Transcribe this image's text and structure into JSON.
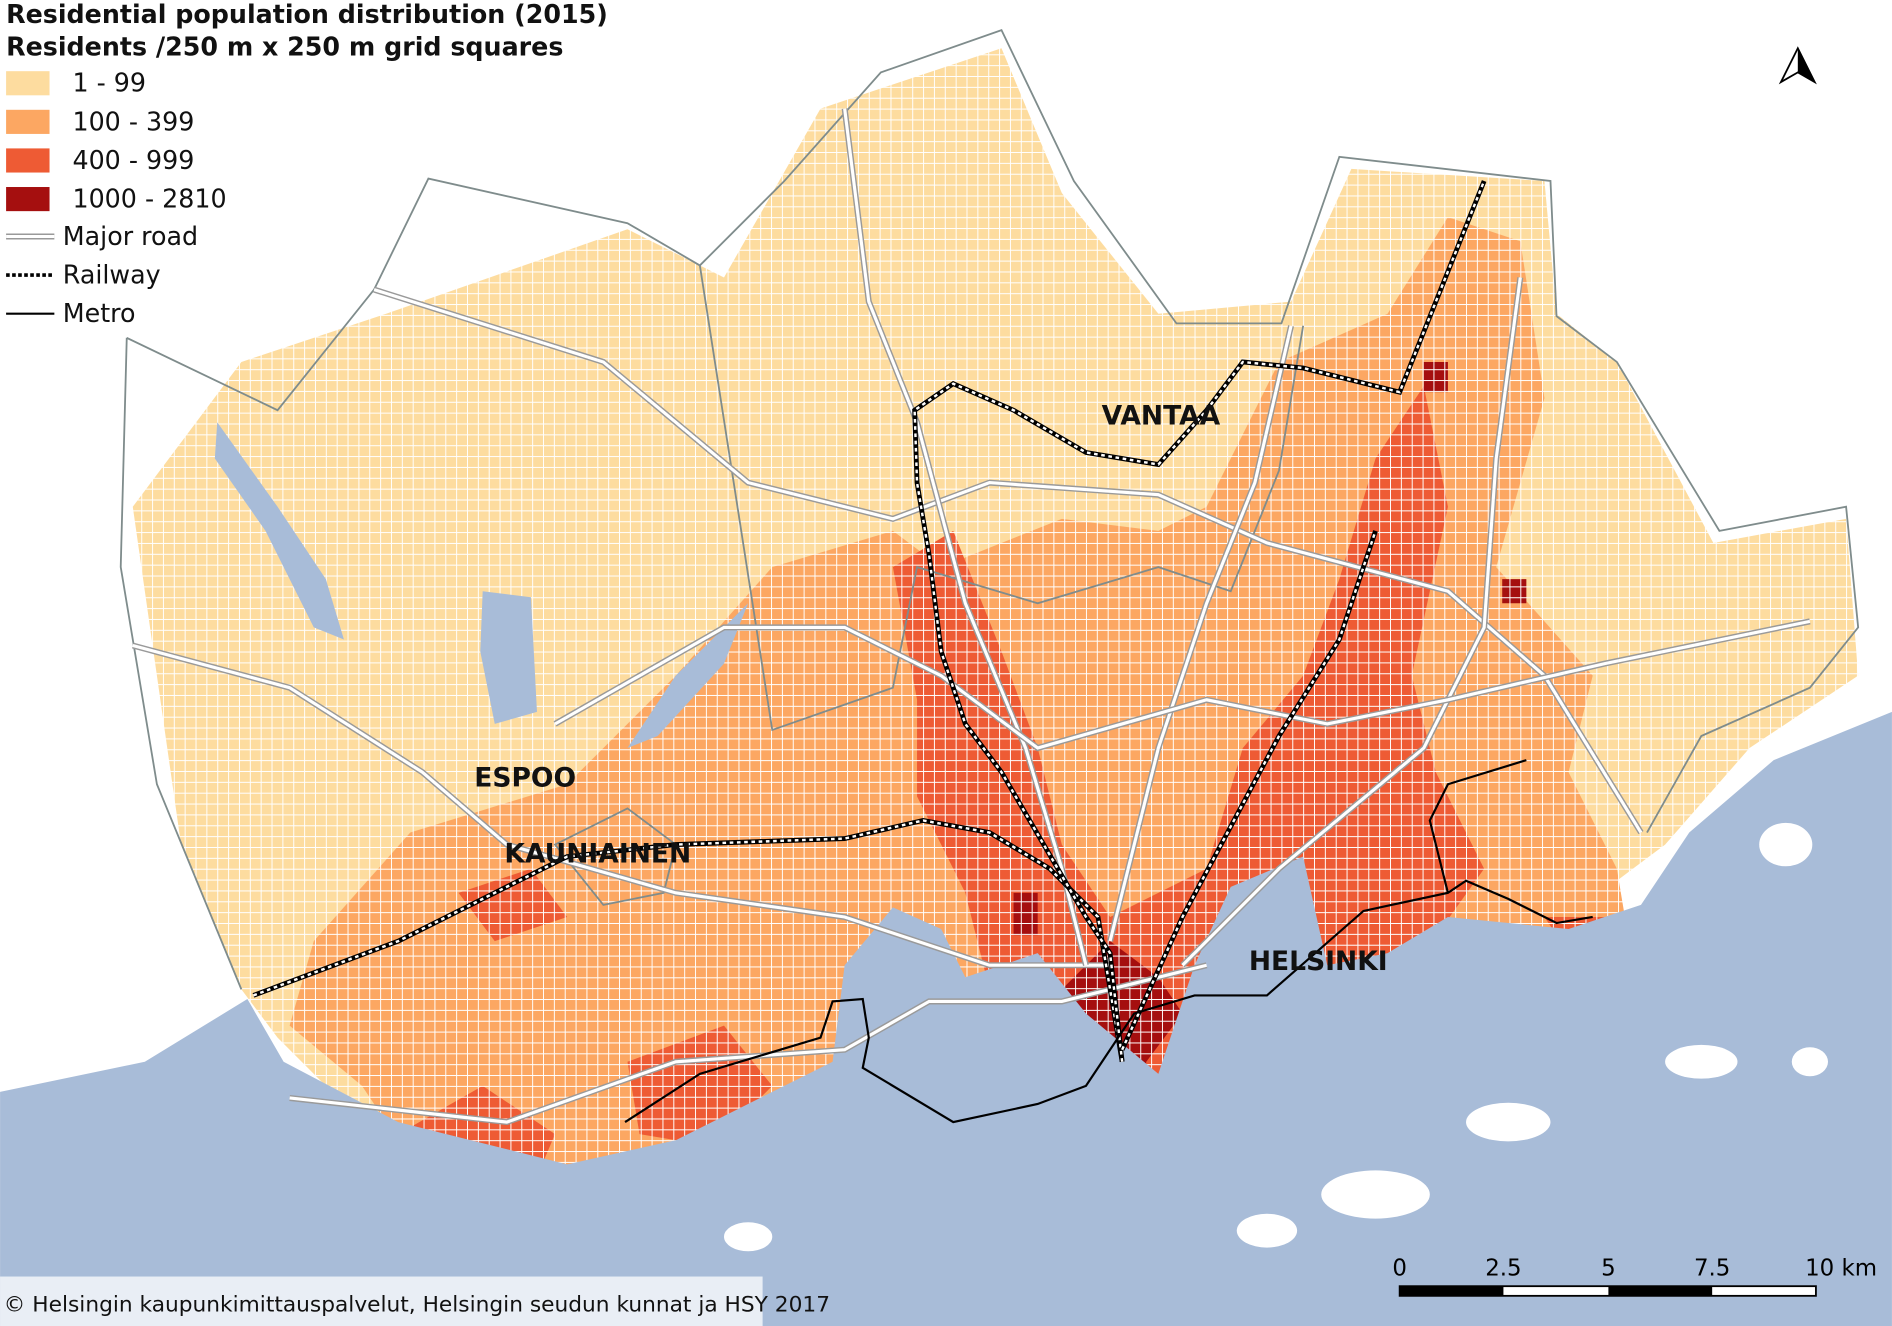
{
  "header": {
    "title": "Residential population distribution (2015)",
    "subtitle": "Residents /250 m x 250 m grid squares"
  },
  "legend": {
    "classes": [
      {
        "label": "1 - 99",
        "color": "#fddc9f"
      },
      {
        "label": "100 - 399",
        "color": "#fca762"
      },
      {
        "label": "400 - 999",
        "color": "#ee5b34"
      },
      {
        "label": "1000 - 2810",
        "color": "#a50f0f"
      }
    ],
    "lines": [
      {
        "label": "Major road"
      },
      {
        "label": "Railway"
      },
      {
        "label": "Metro"
      }
    ]
  },
  "places": [
    {
      "label": "VANTAA"
    },
    {
      "label": "ESPOO"
    },
    {
      "label": "KAUNIAINEN"
    },
    {
      "label": "HELSINKI"
    }
  ],
  "scale_bar": {
    "labels": [
      "0",
      "2.5",
      "5",
      "7.5",
      "10 km"
    ]
  },
  "credit": "© Helsingin kaupunkimittauspalvelut, Helsingin seudun kunnat ja HSY 2017"
}
